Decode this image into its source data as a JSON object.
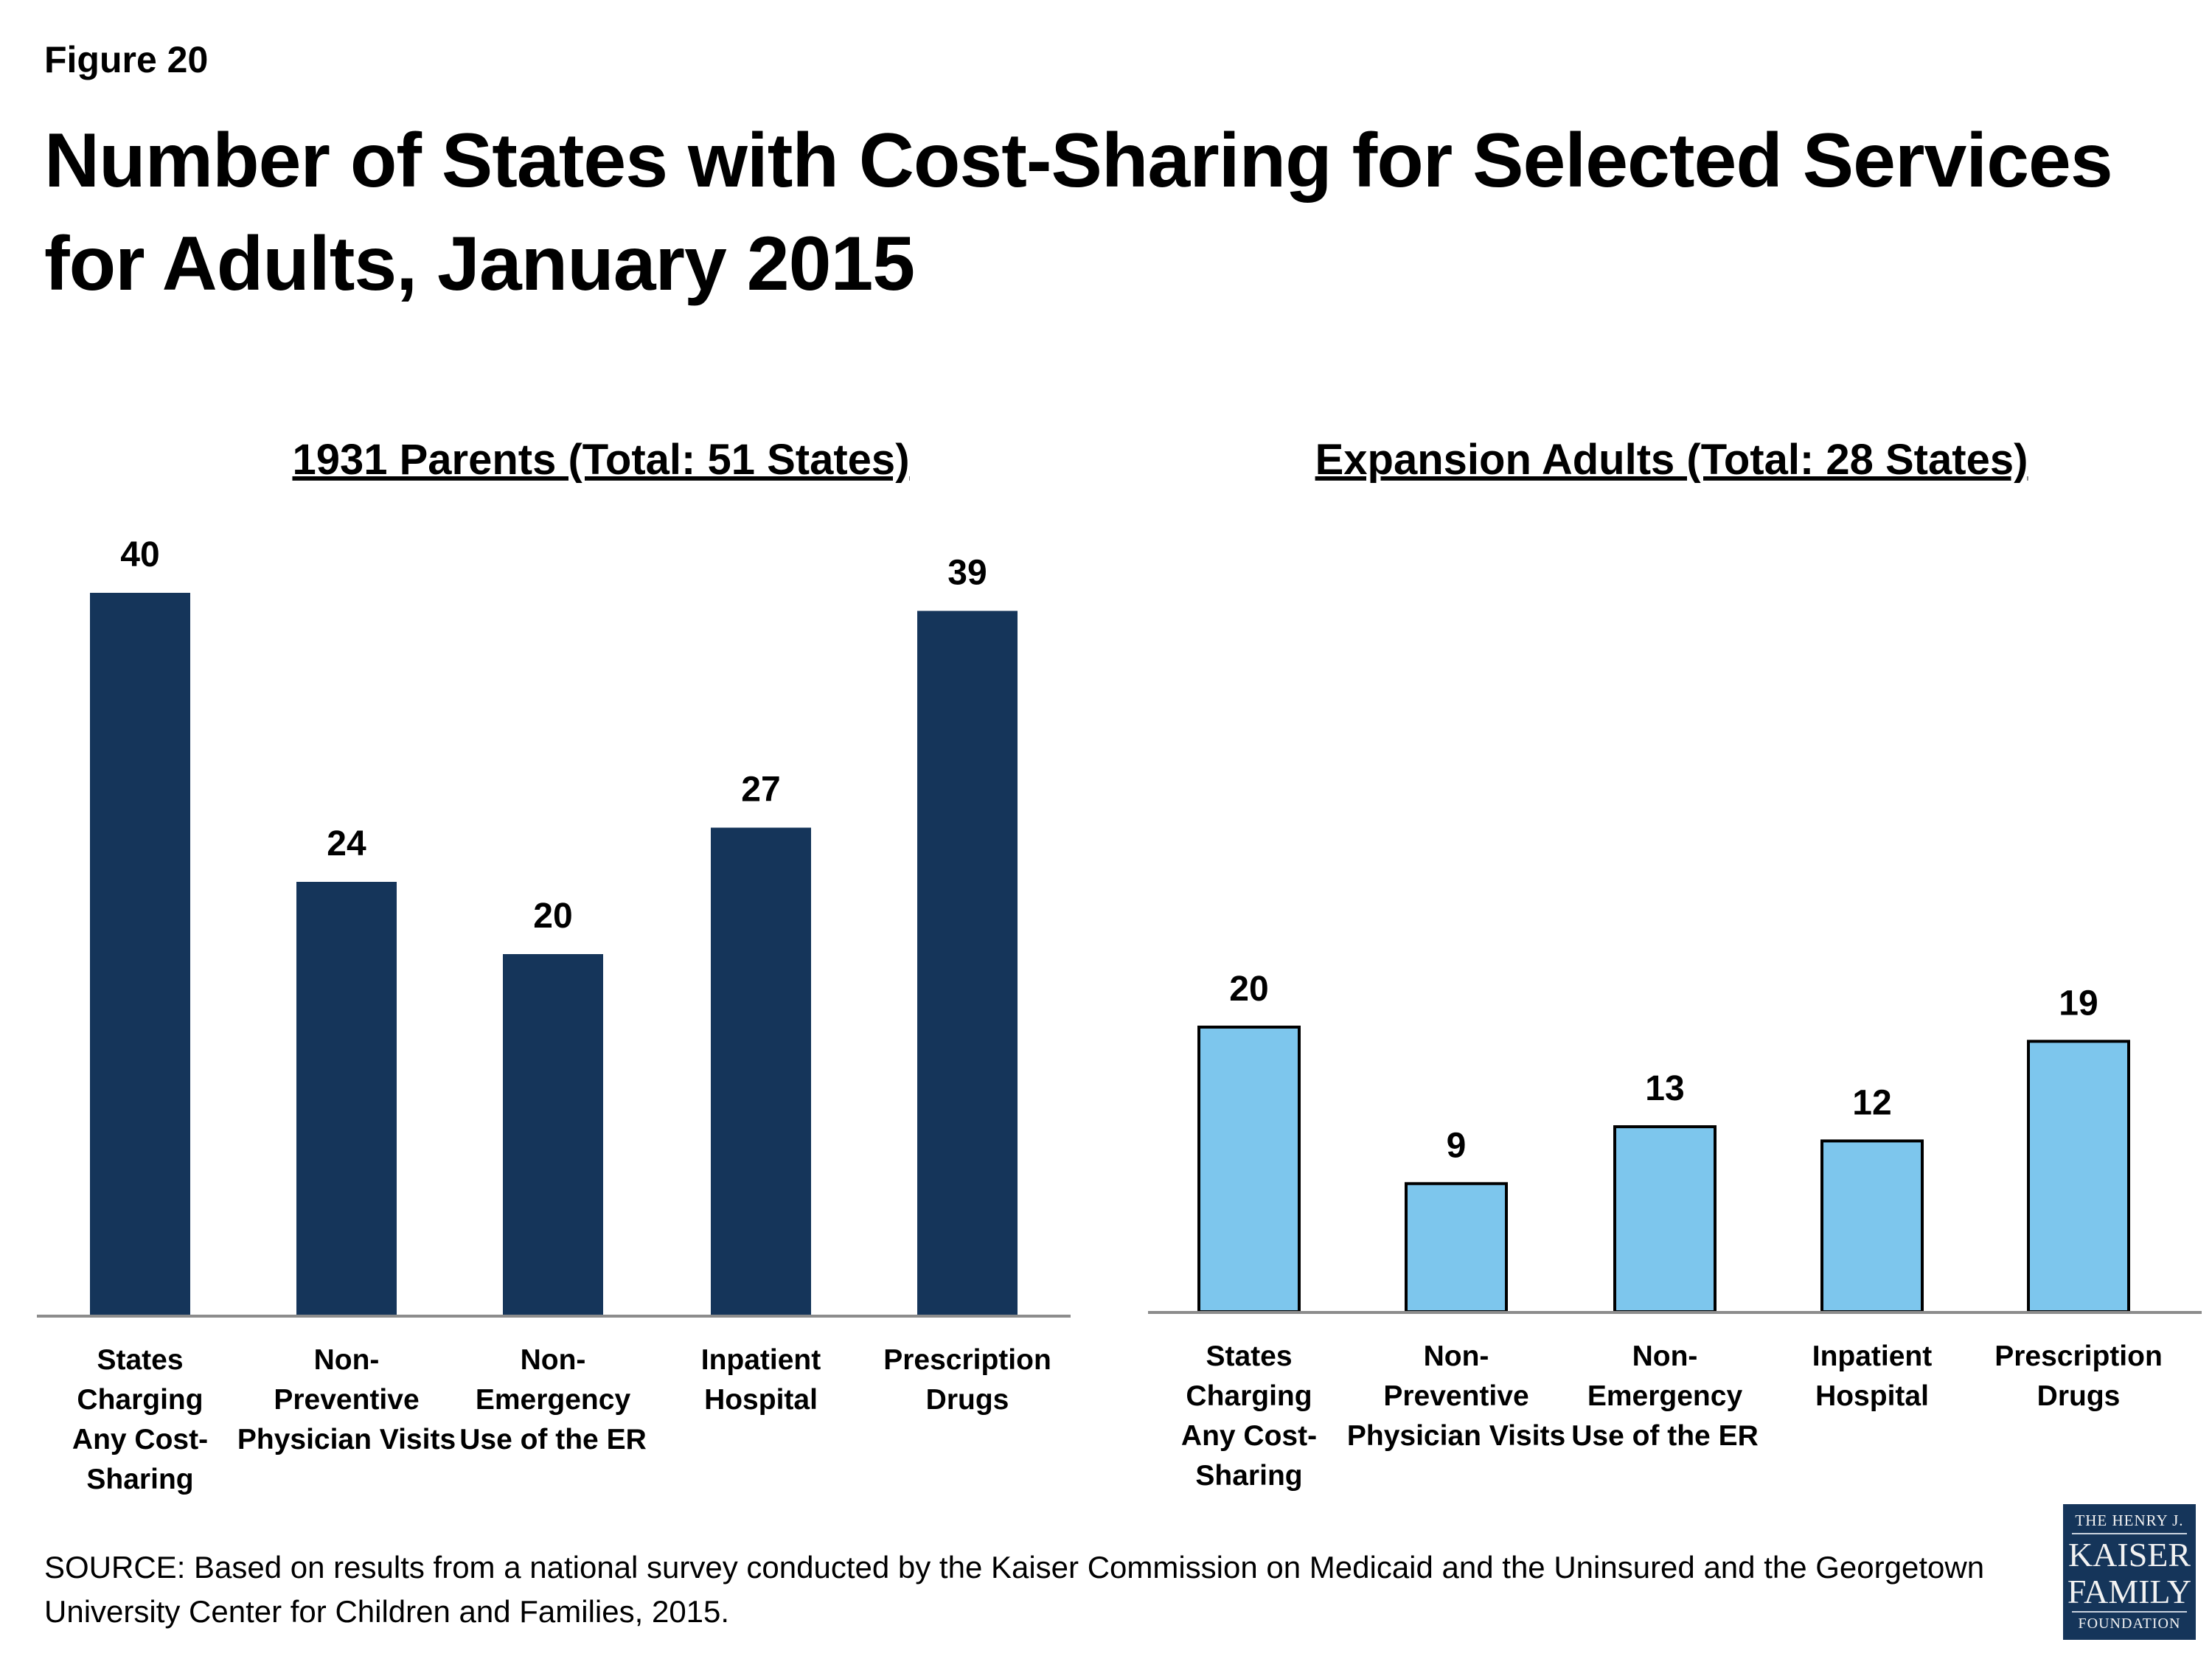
{
  "figure_label": "Figure 20",
  "title": "Number of States with Cost-Sharing for Selected Services for Adults, January 2015",
  "source": "SOURCE: Based on results from a national survey conducted by the Kaiser Commission on Medicaid and the Uninsured and the Georgetown University Center for Children and Families, 2015.",
  "logo": {
    "line1": "THE HENRY J.",
    "line2": "KAISER",
    "line3": "FAMILY",
    "line4": "FOUNDATION"
  },
  "colors": {
    "parents": "#15355A",
    "expansion": "#7DC6ED",
    "axis": "#8C8C8C"
  },
  "chart_data": [
    {
      "type": "bar",
      "title": "1931 Parents (Total: 51 States)",
      "categories": [
        [
          "States",
          "Charging",
          "Any Cost-",
          "Sharing"
        ],
        [
          "Non-",
          "Preventive",
          "Physician Visits"
        ],
        [
          "Non-",
          "Emergency",
          "Use of the ER"
        ],
        [
          "Inpatient",
          "Hospital"
        ],
        [
          "Prescription",
          "Drugs"
        ]
      ],
      "values": [
        40,
        24,
        20,
        27,
        39
      ],
      "color": "#15355A",
      "data_labels": true,
      "grid": false
    },
    {
      "type": "bar",
      "title": "Expansion Adults (Total: 28 States)",
      "categories": [
        [
          "States",
          "Charging",
          "Any Cost-",
          "Sharing"
        ],
        [
          "Non-",
          "Preventive",
          "Physician Visits"
        ],
        [
          "Non-",
          "Emergency",
          "Use of the ER"
        ],
        [
          "Inpatient",
          "Hospital"
        ],
        [
          "Prescription",
          "Drugs"
        ]
      ],
      "values": [
        20,
        9,
        13,
        12,
        19
      ],
      "color": "#7DC6ED",
      "data_labels": true,
      "grid": false
    }
  ]
}
